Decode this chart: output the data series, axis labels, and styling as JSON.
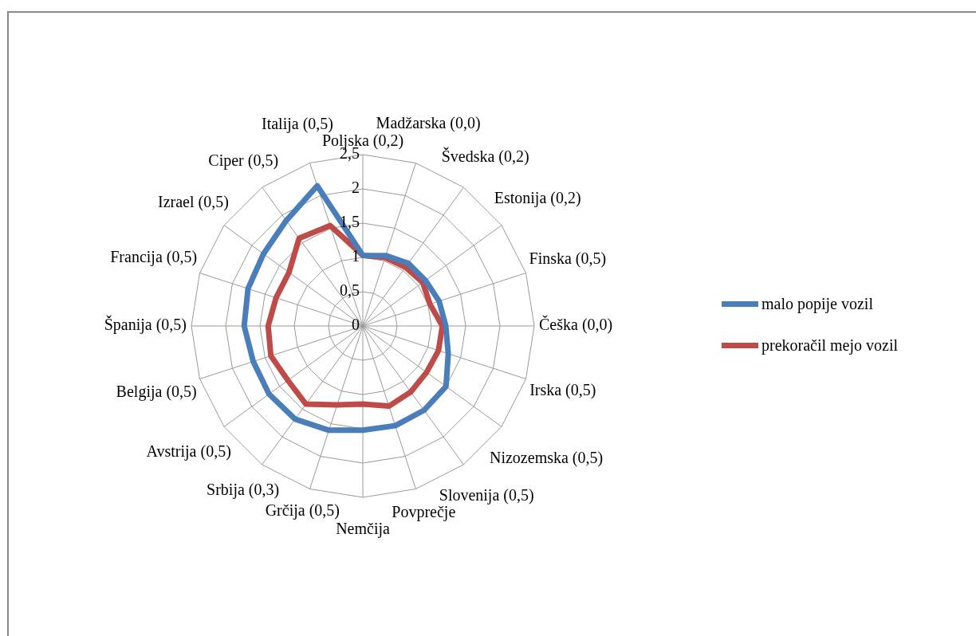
{
  "chart_data": {
    "type": "radar",
    "categories": [
      "Poljska (0,2)",
      "Madžarska (0,0)",
      "Švedska (0,2)",
      "Estonija (0,2)",
      "Finska (0,5)",
      "Češka (0,0)",
      "Irska (0,5)",
      "Nizozemska (0,5)",
      "Slovenija (0,5)",
      "Povprečje",
      "Nemčija",
      "Grčija (0,5)",
      "Srbija (0,3)",
      "Avstrija (0,5)",
      "Belgija (0,5)",
      "Španija (0,5)",
      "Francija (0,5)",
      "Izrael (0,5)",
      "Ciper (0,5)",
      "Italija (0,5)"
    ],
    "series": [
      {
        "name": "malo popije vozil",
        "color": "#4a7ebb",
        "values": [
          1.03,
          1.08,
          1.13,
          1.13,
          1.17,
          1.21,
          1.31,
          1.5,
          1.52,
          1.53,
          1.52,
          1.6,
          1.68,
          1.69,
          1.68,
          1.73,
          1.76,
          1.79,
          1.9,
          2.15
        ]
      },
      {
        "name": "prekoračil mejo vozil",
        "color": "#be4b48",
        "values": [
          1.03,
          1.05,
          1.06,
          1.08,
          1.03,
          1.16,
          1.16,
          1.15,
          1.19,
          1.23,
          1.14,
          1.21,
          1.41,
          1.35,
          1.41,
          1.38,
          1.33,
          1.33,
          1.58,
          1.54
        ]
      }
    ],
    "ylim": [
      0,
      2.5
    ],
    "yticks": [
      0,
      {
        "value": 0.5,
        "label": "0,5"
      },
      1,
      {
        "value": 1.5,
        "label": "1,5"
      },
      2,
      {
        "value": 2.5,
        "label": "2,5"
      }
    ],
    "grid": true,
    "legend": "right",
    "marker": "none",
    "line_style": "solid"
  }
}
